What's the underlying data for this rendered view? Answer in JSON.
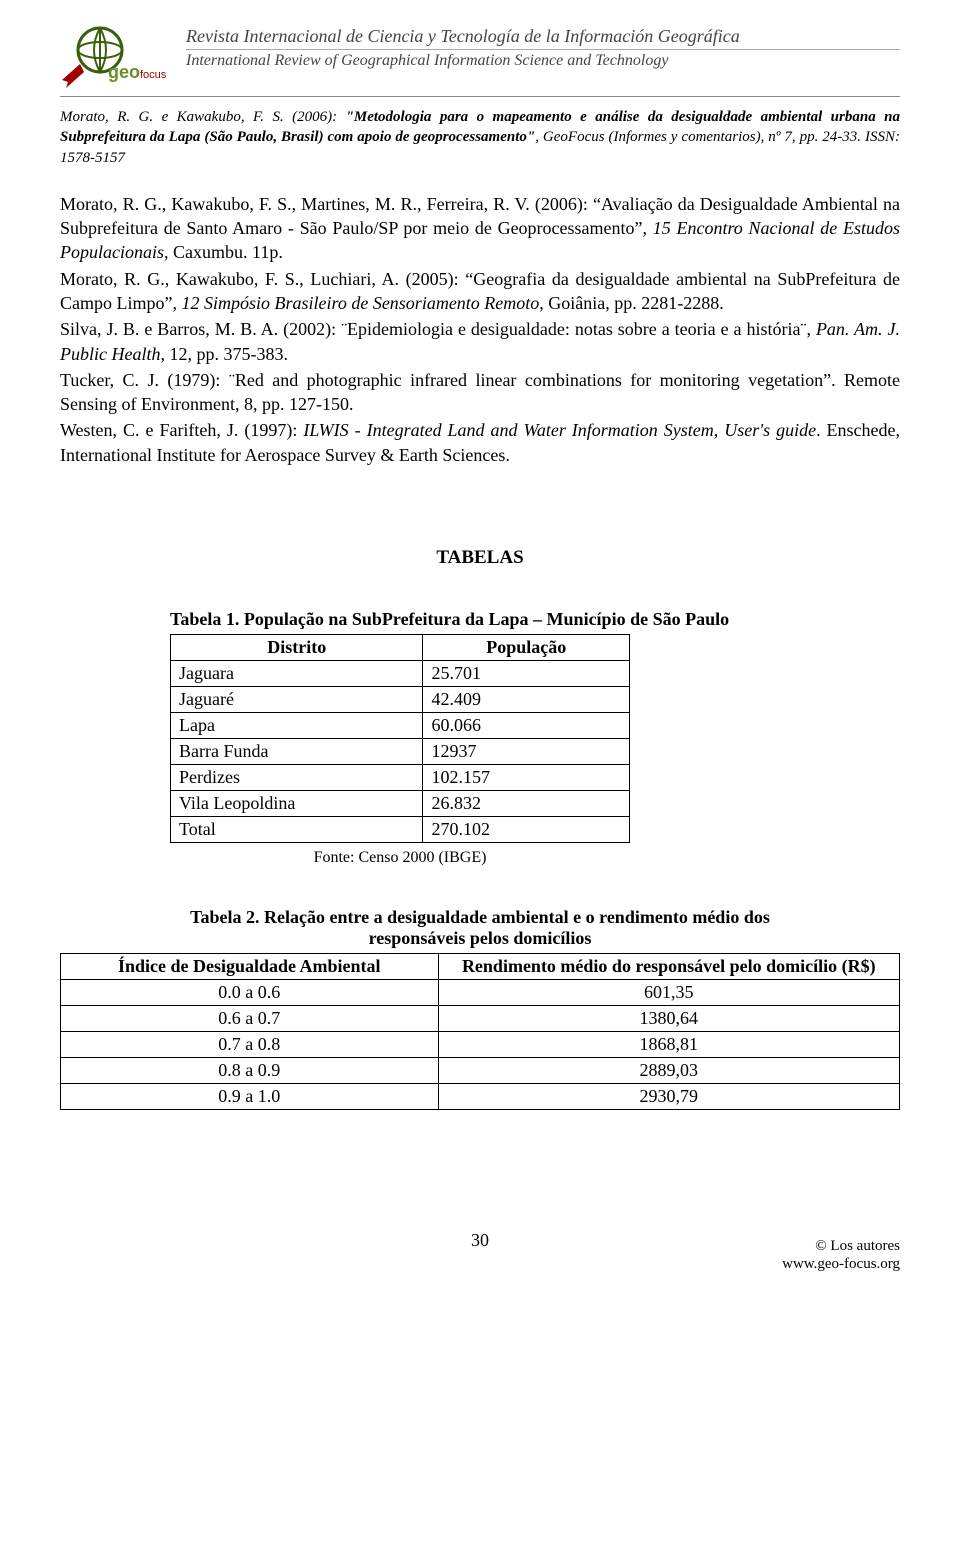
{
  "header": {
    "logo": {
      "geo_text": "geo",
      "focus_text": "focus",
      "geo_color": "#6b8e23",
      "focus_color": "#a00000",
      "stroke": "#3a5f0b"
    },
    "journal_es": "Revista Internacional de Ciencia y Tecnología de la Información Geográfica",
    "journal_en": "International Review of Geographical Information Science and Technology"
  },
  "citation": {
    "authors": "Morato, R. G. e Kawakubo, F. S. (2006): ",
    "title": "\"Metodologia para o mapeamento e análise da desigualdade ambiental urbana na Subprefeitura da Lapa (São Paulo, Brasil) com apoio de geoprocessamento\"",
    "suffix": ", GeoFocus (Informes y comentarios), nº 7, pp. 24-33. ISSN: 1578-5157"
  },
  "references": [
    "Morato, R. G., Kawakubo, F. S., Martines, M. R., Ferreira, R. V. (2006): “Avaliação da Desigualdade Ambiental na Subprefeitura de Santo Amaro - São Paulo/SP por meio de Geoprocessamento”, <em>15 Encontro Nacional de Estudos Populacionais</em>, Caxumbu. 11p.",
    "Morato, R. G., Kawakubo, F. S., Luchiari, A. (2005): “Geografia da desigualdade ambiental na SubPrefeitura de Campo Limpo”, <em>12 Simpósio Brasileiro de Sensoriamento Remoto</em>, Goiânia, pp. 2281-2288.",
    "Silva, J. B. e Barros, M. B. A. (2002): ¨Epidemiologia e desigualdade: notas sobre a teoria e a história¨, <em>Pan. Am. J. Public Health</em>, 12, pp. 375-383.",
    "Tucker, C. J. (1979): ¨Red and photographic infrared linear combinations for monitoring vegetation”. Remote Sensing of Environment, 8, pp. 127-150.",
    "Westen, C. e Farifteh, J. (1997): <em>ILWIS - Integrated Land and Water Information System</em>, <em>User's guide</em>. Enschede, International Institute for Aerospace Survey & Earth Sciences."
  ],
  "tables_heading": "TABELAS",
  "table1": {
    "caption": "Tabela 1. População na SubPrefeitura da Lapa – Município de São Paulo",
    "columns": [
      "Distrito",
      "População"
    ],
    "rows": [
      [
        "Jaguara",
        "25.701"
      ],
      [
        "Jaguaré",
        "42.409"
      ],
      [
        "Lapa",
        "60.066"
      ],
      [
        "Barra Funda",
        "12937"
      ],
      [
        "Perdizes",
        "102.157"
      ],
      [
        "Vila Leopoldina",
        "26.832"
      ],
      [
        "Total",
        "270.102"
      ]
    ],
    "source": "Fonte: Censo 2000 (IBGE)",
    "col_widths": [
      "55%",
      "45%"
    ],
    "border_color": "#000000",
    "font_size": 18
  },
  "table2": {
    "caption_l1": "Tabela 2. Relação entre a desigualdade ambiental e o rendimento médio dos",
    "caption_l2": "responsáveis pelos domicílios",
    "columns": [
      "Índice de Desigualdade Ambiental",
      "Rendimento médio do responsável pelo domicílio (R$)"
    ],
    "rows": [
      [
        "0.0 a 0.6",
        "601,35"
      ],
      [
        "0.6 a 0.7",
        "1380,64"
      ],
      [
        "0.7 a 0.8",
        "1868,81"
      ],
      [
        "0.8 a 0.9",
        "2889,03"
      ],
      [
        "0.9 a 1.0",
        "2930,79"
      ]
    ],
    "border_color": "#000000",
    "font_size": 18
  },
  "footer": {
    "copyright": "© Los autores",
    "url": "www.geo-focus.org",
    "page": "30"
  }
}
